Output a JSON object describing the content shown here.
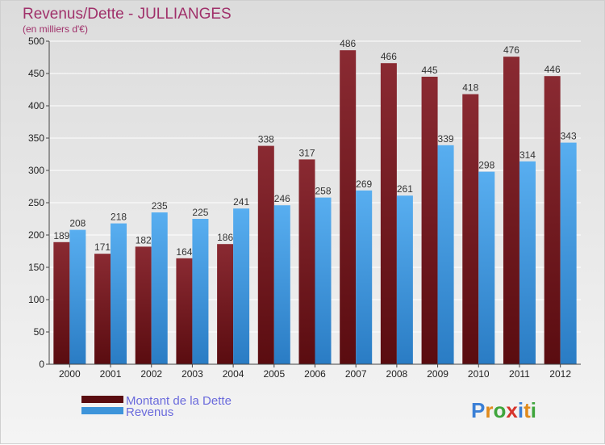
{
  "chart_data": {
    "type": "bar",
    "title": "Revenus/Dette - JULLIANGES",
    "subtitle": "(en milliers d'€)",
    "categories": [
      "2000",
      "2001",
      "2002",
      "2003",
      "2004",
      "2005",
      "2006",
      "2007",
      "2008",
      "2009",
      "2010",
      "2011",
      "2012"
    ],
    "series": [
      {
        "name": "Montant de la Dette",
        "color": "#6e1a1e",
        "values": [
          189,
          171,
          182,
          164,
          186,
          338,
          317,
          486,
          466,
          445,
          418,
          476,
          446
        ]
      },
      {
        "name": "Revenus",
        "color": "#3d94da",
        "values": [
          208,
          218,
          235,
          225,
          241,
          246,
          258,
          269,
          261,
          339,
          298,
          314,
          343
        ]
      }
    ],
    "ylim": [
      0,
      500
    ],
    "yticks": [
      0,
      50,
      100,
      150,
      200,
      250,
      300,
      350,
      400,
      450,
      500
    ],
    "grid": true,
    "legend_position": "bottom-left"
  },
  "logo": {
    "text": "Proxiti"
  }
}
